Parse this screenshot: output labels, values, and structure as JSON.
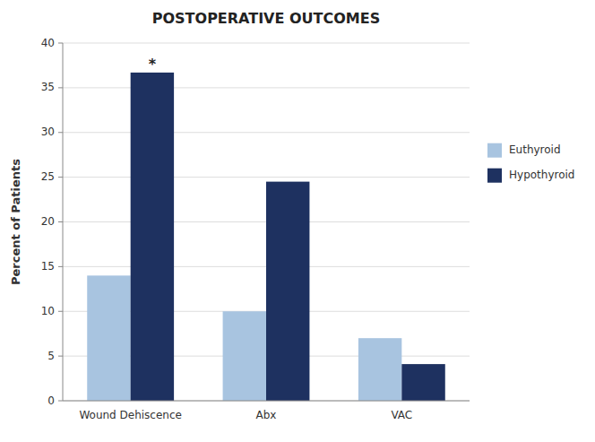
{
  "chart_data": {
    "type": "bar",
    "title": "POSTOPERATIVE OUTCOMES",
    "y_label": "Percent of Patients",
    "categories": [
      "Wound Dehiscence",
      "Abx",
      "VAC"
    ],
    "series": [
      {
        "name": "Euthyroid",
        "color": "#a8c4e0",
        "values": [
          14,
          10,
          7
        ]
      },
      {
        "name": "Hypothyroid",
        "color": "#1e3160",
        "values": [
          36.7,
          24.5,
          4.1
        ]
      }
    ],
    "ylim": [
      0,
      40
    ],
    "yticks": [
      0,
      5,
      10,
      15,
      20,
      25,
      30,
      35,
      40
    ],
    "grid": true,
    "legend": "right",
    "annotations": [
      {
        "text": "*",
        "x": "Wound Dehiscence",
        "y": 36.7,
        "series": "Hypothyroid"
      }
    ]
  }
}
